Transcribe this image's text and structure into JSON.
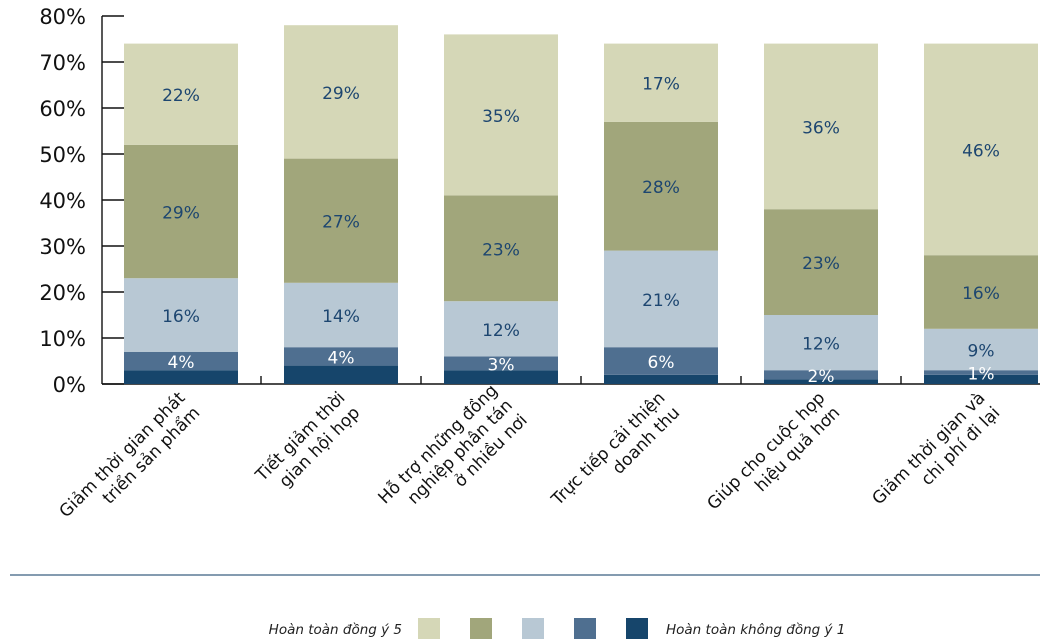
{
  "chart_data": {
    "type": "bar",
    "stacked": true,
    "categories": [
      [
        "Giảm thời gian phát",
        "triển sản phẩm"
      ],
      [
        "Tiết giảm thời",
        "gian hội họp"
      ],
      [
        "Hỗ trợ những đồng",
        "nghiệp phân tán",
        "ở nhiều nơi"
      ],
      [
        "Trực tiếp cải thiện",
        "doanh thu"
      ],
      [
        "Giúp cho cuộc họp",
        "hiệu quả hơn"
      ],
      [
        "Giảm thời gian và",
        "chi phí đi lại"
      ]
    ],
    "series": [
      {
        "values": [
          3,
          4,
          3,
          2,
          1,
          2
        ],
        "labels": [
          "",
          "",
          "",
          "",
          "",
          ""
        ],
        "color": "#16456b"
      },
      {
        "values": [
          4,
          4,
          3,
          6,
          2,
          1
        ],
        "labels": [
          "4%",
          "4%",
          "3%",
          "6%",
          "2%",
          "1%"
        ],
        "color": "#4f6f90"
      },
      {
        "values": [
          16,
          14,
          12,
          21,
          12,
          9
        ],
        "labels": [
          "16%",
          "14%",
          "12%",
          "21%",
          "12%",
          "9%"
        ],
        "color": "#b8c8d4"
      },
      {
        "values": [
          29,
          27,
          23,
          28,
          23,
          16
        ],
        "labels": [
          "29%",
          "27%",
          "23%",
          "28%",
          "23%",
          "16%"
        ],
        "color": "#a1a67b"
      },
      {
        "values": [
          22,
          29,
          35,
          17,
          36,
          46
        ],
        "labels": [
          "22%",
          "29%",
          "35%",
          "17%",
          "36%",
          "46%"
        ],
        "color": "#d5d7b7"
      }
    ],
    "yticks": [
      "0%",
      "10%",
      "20%",
      "30%",
      "40%",
      "50%",
      "60%",
      "70%",
      "80%"
    ],
    "ylim": [
      0,
      80
    ],
    "grid": false,
    "legend": {
      "left_label": "Hoàn toàn đồng ý 5",
      "right_label": "Hoàn toàn không đồng ý 1",
      "colors": [
        "#d5d7b7",
        "#a1a67b",
        "#b8c8d4",
        "#4f6f90",
        "#16456b"
      ],
      "position": "bottom"
    }
  }
}
